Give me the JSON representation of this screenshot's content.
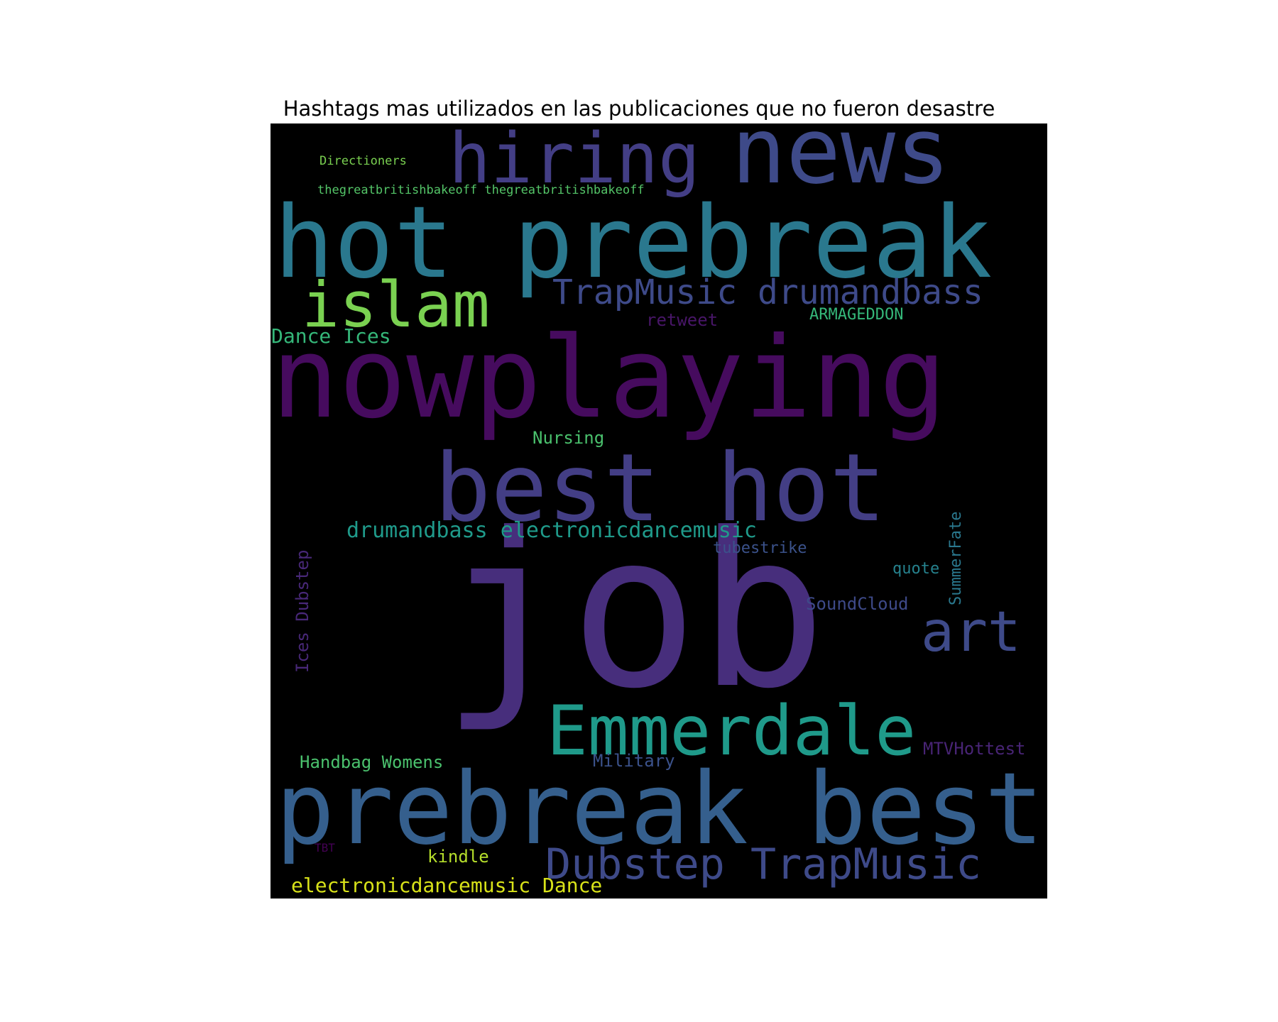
{
  "chart_data": {
    "type": "wordcloud",
    "title": "Hashtags mas utilizados en las publicaciones que no fueron desastre",
    "background": "#000000",
    "words": [
      {
        "text": "job",
        "color": "#472e7c"
      },
      {
        "text": "nowplaying",
        "color": "#460b5e"
      },
      {
        "text": "prebreak best",
        "color": "#355f8d"
      },
      {
        "text": "hot prebreak",
        "color": "#2a788e"
      },
      {
        "text": "best hot",
        "color": "#433e85"
      },
      {
        "text": "news",
        "color": "#3e4a89"
      },
      {
        "text": "hiring",
        "color": "#433e85"
      },
      {
        "text": "Emmerdale",
        "color": "#1f9a8a"
      },
      {
        "text": "islam",
        "color": "#7ad151"
      },
      {
        "text": "art",
        "color": "#3e4a89"
      },
      {
        "text": "Dubstep TrapMusic",
        "color": "#3e4a89"
      },
      {
        "text": "TrapMusic drumandbass",
        "color": "#3e4a89"
      },
      {
        "text": "drumandbass electronicdancemusic",
        "color": "#1f9a8a"
      },
      {
        "text": "electronicdancemusic Dance",
        "color": "#d8e219"
      },
      {
        "text": "Dance Ices",
        "color": "#35b779"
      },
      {
        "text": "Ices Dubstep",
        "color": "#482878"
      },
      {
        "text": "Handbag Womens",
        "color": "#4ac16d"
      },
      {
        "text": "Military",
        "color": "#3b528b"
      },
      {
        "text": "MTVHottest",
        "color": "#482475"
      },
      {
        "text": "SoundCloud",
        "color": "#3e4a89"
      },
      {
        "text": "SummerFate",
        "color": "#2a788e"
      },
      {
        "text": "quote",
        "color": "#26828e"
      },
      {
        "text": "tubestrike",
        "color": "#3b528b"
      },
      {
        "text": "Nursing",
        "color": "#4ac16d"
      },
      {
        "text": "ARMAGEDDON",
        "color": "#35b779"
      },
      {
        "text": "retweet",
        "color": "#481668"
      },
      {
        "text": "thegreatbritishbakeoff thegreatbritishbakeoff",
        "color": "#54c568"
      },
      {
        "text": "Directioners",
        "color": "#7ad151"
      },
      {
        "text": "kindle",
        "color": "#b5de2b"
      },
      {
        "text": "TBT",
        "color": "#440154"
      }
    ]
  }
}
